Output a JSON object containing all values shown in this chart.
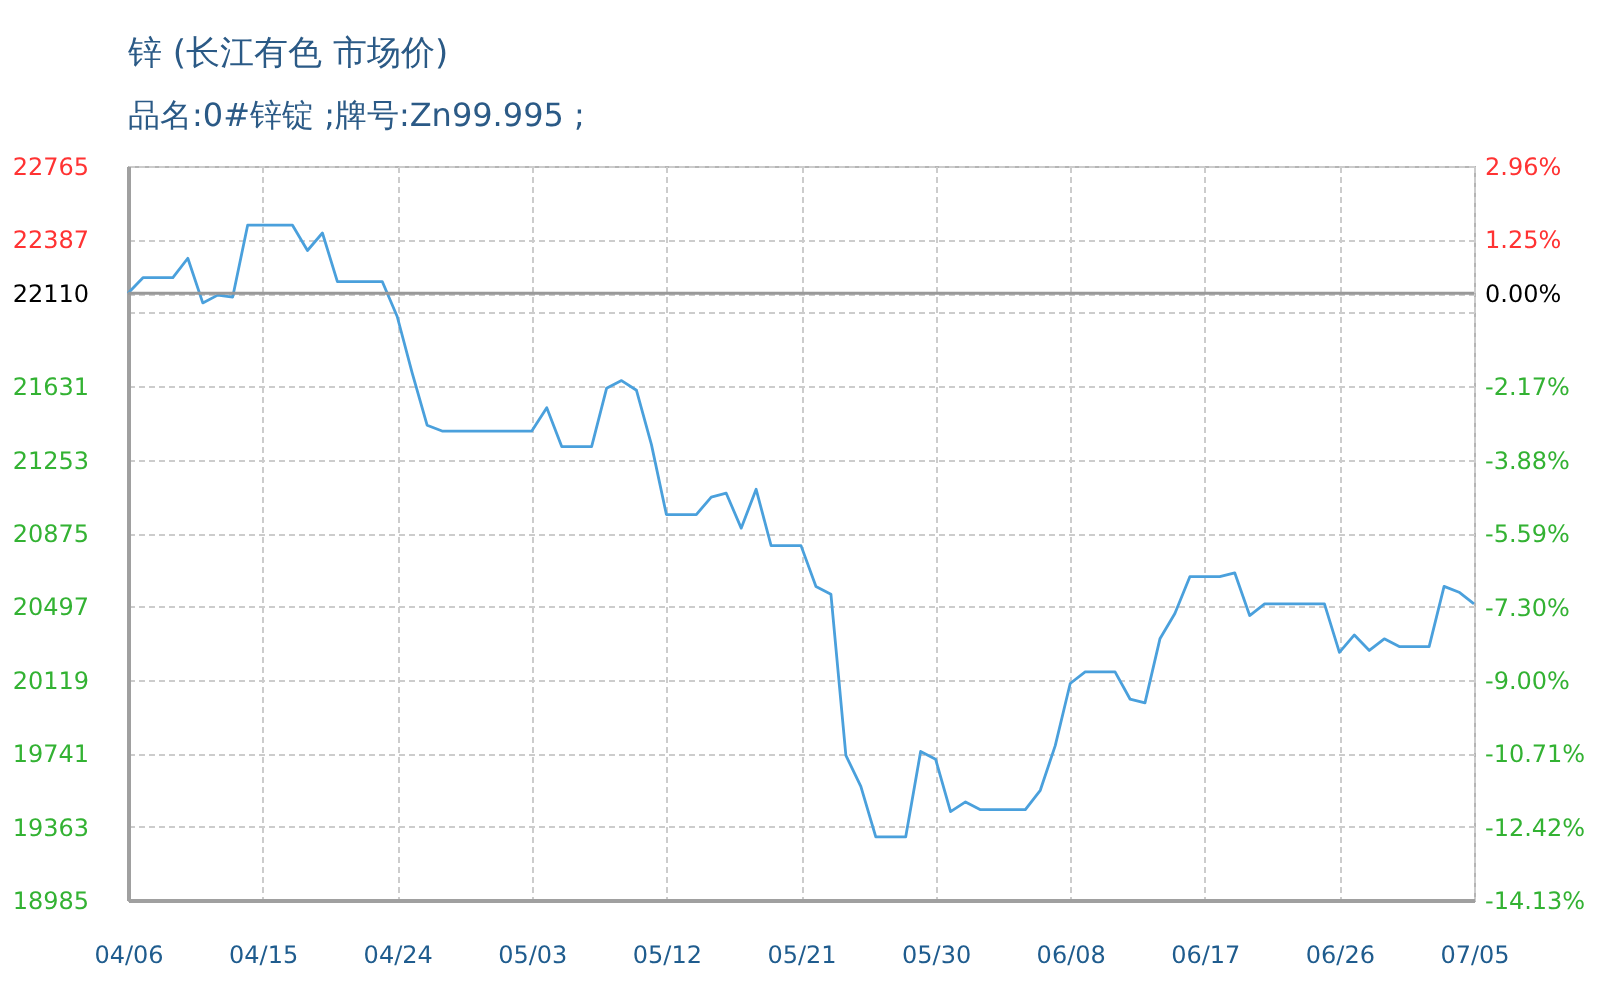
{
  "chart_data": {
    "type": "line",
    "title": "锌 (长江有色 市场价)",
    "subtitle": "品名:0#锌锭 ;牌号:Zn99.995 ;",
    "x": [
      "--04-06",
      "--04-07",
      "--04-09",
      "--04-10",
      "--04-11",
      "--04-12",
      "--04-13",
      "--04-14",
      "--04-17",
      "--04-18",
      "--04-19",
      "--04-20",
      "--04-23",
      "--04-24",
      "--04-25",
      "--04-26",
      "--04-27",
      "--05-03",
      "--05-04",
      "--05-05",
      "--05-07",
      "--05-08",
      "--05-09",
      "--05-10",
      "--05-11",
      "--05-12",
      "--05-14",
      "--05-15",
      "--05-16",
      "--05-17",
      "--05-18",
      "--05-19",
      "--05-21",
      "--05-22",
      "--05-23",
      "--05-24",
      "--05-25",
      "--05-26",
      "--05-28",
      "--05-29",
      "--05-30",
      "--05-31",
      "--06-01",
      "--06-02",
      "--06-05",
      "--06-06",
      "--06-07",
      "--06-08",
      "--06-09",
      "--06-11",
      "--06-12",
      "--06-13",
      "--06-14",
      "--06-15",
      "--06-16",
      "--06-18",
      "--06-19",
      "--06-20",
      "--06-21",
      "--06-25",
      "--06-26",
      "--06-27",
      "--06-28",
      "--06-29",
      "--06-30",
      "--07-02",
      "--07-03",
      "--07-04",
      "--07-05"
    ],
    "values": [
      22110,
      22190,
      22190,
      22290,
      22060,
      22100,
      22090,
      22460,
      22460,
      22330,
      22420,
      22170,
      22170,
      21990,
      21700,
      21430,
      21400,
      21400,
      21520,
      21320,
      21320,
      21620,
      21660,
      21610,
      21330,
      20970,
      20970,
      21060,
      21080,
      20900,
      21100,
      20810,
      20810,
      20600,
      20560,
      19730,
      19570,
      19310,
      19310,
      19750,
      19710,
      19440,
      19490,
      19450,
      19450,
      19550,
      19780,
      20100,
      20160,
      20160,
      20020,
      20000,
      20330,
      20460,
      20650,
      20650,
      20670,
      20450,
      20510,
      20510,
      20260,
      20350,
      20270,
      20330,
      20290,
      20290,
      20600,
      20570,
      20510
    ],
    "color": "#4aa0dc",
    "xlim": [
      "--04-06",
      "--07-05"
    ],
    "xticks": [
      {
        "value": "--04-06",
        "label": "04/06"
      },
      {
        "value": "--04-15",
        "label": "04/15"
      },
      {
        "value": "--04-24",
        "label": "04/24"
      },
      {
        "value": "--05-03",
        "label": "05/03"
      },
      {
        "value": "--05-12",
        "label": "05/12"
      },
      {
        "value": "--05-21",
        "label": "05/21"
      },
      {
        "value": "--05-30",
        "label": "05/30"
      },
      {
        "value": "--06-08",
        "label": "06/08"
      },
      {
        "value": "--06-17",
        "label": "06/17"
      },
      {
        "value": "--06-26",
        "label": "06/26"
      },
      {
        "value": "--07-05",
        "label": "07/05"
      }
    ],
    "ylim": [
      18985,
      22765
    ],
    "yticks": [
      18985,
      19363,
      19741,
      20119,
      20497,
      20875,
      21253,
      21631,
      {
        "value": 22009,
        "label": null
      },
      22110,
      22387,
      22765
    ],
    "y2lim": [
      -14.13,
      2.96
    ],
    "y2ticks": [
      {
        "value": -14.13,
        "label": "-14.13%"
      },
      {
        "value": -12.42,
        "label": "-12.42%"
      },
      {
        "value": -10.71,
        "label": "-10.71%"
      },
      {
        "value": -9.0,
        "label": "-9.00%"
      },
      {
        "value": -7.3,
        "label": "-7.30%"
      },
      {
        "value": -5.59,
        "label": "-5.59%"
      },
      {
        "value": -3.88,
        "label": "-3.88%"
      },
      {
        "value": -2.17,
        "label": "-2.17%"
      },
      {
        "value": 0,
        "label": "0.00%"
      },
      {
        "value": 1.25,
        "label": "1.25%"
      },
      {
        "value": 2.96,
        "label": "2.96%"
      }
    ],
    "ref_lines": [
      {
        "axis": "y",
        "value": 22110,
        "color": "#999999"
      }
    ],
    "grid": true
  }
}
